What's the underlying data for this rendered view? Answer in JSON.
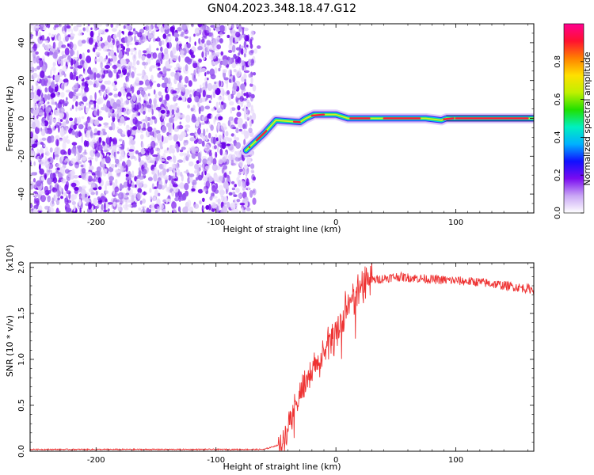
{
  "title": "GN04.2023.348.18.47.G12",
  "chart_data": [
    {
      "type": "heatmap",
      "xlabel": "Height of straight line (km)",
      "ylabel": "Frequency (Hz)",
      "xlim": [
        -255,
        165
      ],
      "ylim": [
        -50,
        50
      ],
      "xticks": [
        -200,
        -100,
        0,
        100
      ],
      "yticks": [
        -40,
        -20,
        0,
        20,
        40
      ],
      "colorbar": {
        "label": "Normalized spectral amplitude",
        "range": [
          0,
          1
        ],
        "ticks": [
          "0.0",
          "0.2",
          "0.4",
          "0.6",
          "0.8"
        ],
        "colors": [
          "#ffffff",
          "#c9a6f5",
          "#7a0cf0",
          "#1010ff",
          "#00b0ff",
          "#00f0c0",
          "#20e000",
          "#c0f000",
          "#ffe000",
          "#ff8000",
          "#ff1030",
          "#ff0090"
        ]
      },
      "noise_region_x": [
        -255,
        -68
      ],
      "signal_track": [
        {
          "x": -75,
          "y": -17
        },
        {
          "x": -60,
          "y": -8
        },
        {
          "x": -50,
          "y": -1
        },
        {
          "x": -30,
          "y": -2
        },
        {
          "x": -25,
          "y": 0
        },
        {
          "x": -18,
          "y": 2
        },
        {
          "x": 0,
          "y": 2
        },
        {
          "x": 10,
          "y": 0
        },
        {
          "x": 75,
          "y": 0
        },
        {
          "x": 88,
          "y": -1
        },
        {
          "x": 92,
          "y": 0
        },
        {
          "x": 165,
          "y": 0
        }
      ]
    },
    {
      "type": "line",
      "xlabel": "Height of straight line (km)",
      "ylabel": "SNR (10 * v/v)",
      "scale_label": "(x10⁴)",
      "xlim": [
        -255,
        165
      ],
      "ylim": [
        0,
        2.05
      ],
      "xticks": [
        -200,
        -100,
        0,
        100
      ],
      "yticks": [
        "0.0",
        "0.5",
        "1.0",
        "1.5",
        "2.0"
      ],
      "color": "#ee3333",
      "trend": [
        {
          "x": -255,
          "y": 0.02
        },
        {
          "x": -60,
          "y": 0.02
        },
        {
          "x": -45,
          "y": 0.08
        },
        {
          "x": -38,
          "y": 0.35
        },
        {
          "x": -30,
          "y": 0.62
        },
        {
          "x": -20,
          "y": 0.85
        },
        {
          "x": -10,
          "y": 1.05
        },
        {
          "x": 0,
          "y": 1.28
        },
        {
          "x": 10,
          "y": 1.55
        },
        {
          "x": 20,
          "y": 1.75
        },
        {
          "x": 30,
          "y": 1.86
        },
        {
          "x": 50,
          "y": 1.9
        },
        {
          "x": 80,
          "y": 1.87
        },
        {
          "x": 120,
          "y": 1.84
        },
        {
          "x": 165,
          "y": 1.76
        }
      ]
    }
  ]
}
